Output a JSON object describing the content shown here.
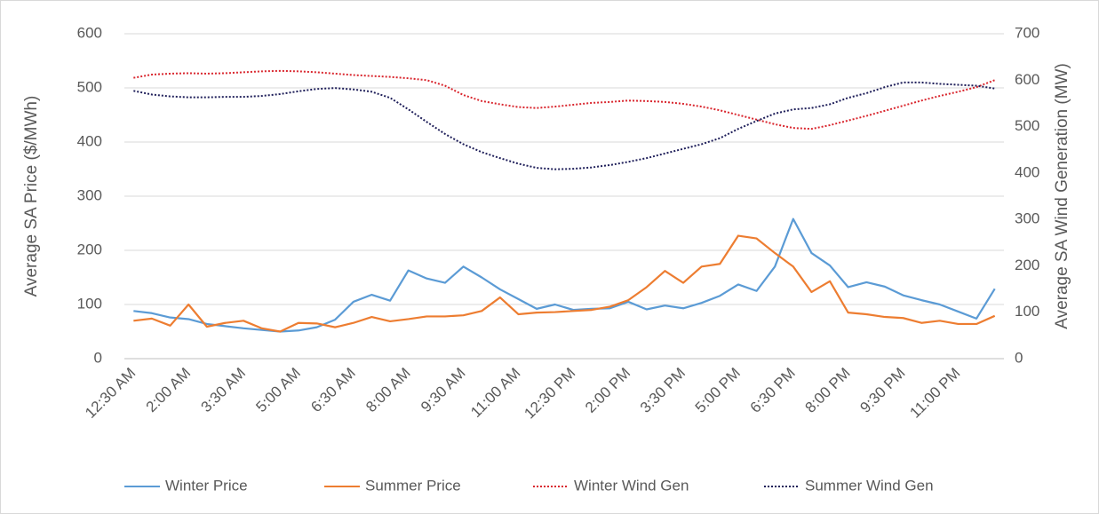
{
  "chart_data": {
    "type": "line",
    "y_label": "Average SA Price ($/MWh)",
    "y2_label": "Average SA Wind Generation (MW)",
    "categories": [
      "12:30 AM",
      null,
      null,
      "2:00 AM",
      null,
      null,
      "3:30 AM",
      null,
      null,
      "5:00 AM",
      null,
      null,
      "6:30 AM",
      null,
      null,
      "8:00 AM",
      null,
      null,
      "9:30 AM",
      null,
      null,
      "11:00 AM",
      null,
      null,
      "12:30 PM",
      null,
      null,
      "2:00 PM",
      null,
      null,
      "3:30 PM",
      null,
      null,
      "5:00 PM",
      null,
      null,
      "6:30 PM",
      null,
      null,
      "8:00 PM",
      null,
      null,
      "9:30 PM",
      null,
      null,
      "11:00 PM",
      null,
      null
    ],
    "ylim": [
      0,
      600
    ],
    "yticks": [
      0,
      100,
      200,
      300,
      400,
      500,
      600
    ],
    "y2lim": [
      0,
      700
    ],
    "y2ticks": [
      0,
      100,
      200,
      300,
      400,
      500,
      600,
      700
    ],
    "grid": true,
    "legend": "bottom",
    "series": [
      {
        "name": "Winter Price",
        "color": "#5b9bd5",
        "style": "solid",
        "values": [
          88,
          84,
          76,
          73,
          64,
          60,
          56,
          53,
          50,
          52,
          58,
          72,
          105,
          118,
          107,
          163,
          148,
          140,
          170,
          150,
          128,
          110,
          92,
          100,
          90,
          92,
          93,
          105,
          91,
          98,
          93,
          103,
          116,
          137,
          125,
          170,
          258,
          195,
          172,
          132,
          141,
          133,
          117,
          108,
          100,
          87,
          74,
          129
        ]
      },
      {
        "name": "Summer Price",
        "color": "#ed7d31",
        "style": "solid",
        "values": [
          70,
          74,
          61,
          100,
          59,
          66,
          70,
          56,
          50,
          66,
          65,
          58,
          66,
          77,
          69,
          73,
          78,
          78,
          80,
          88,
          113,
          82,
          85,
          86,
          88,
          90,
          96,
          108,
          132,
          162,
          140,
          170,
          175,
          227,
          222,
          195,
          170,
          123,
          143,
          85,
          82,
          77,
          75,
          66,
          70,
          64,
          64,
          79
        ]
      },
      {
        "name": "Winter Wind Gen",
        "color": "#d9262e",
        "style": "dotted",
        "axis": "y2",
        "values": [
          605,
          612,
          614,
          615,
          614,
          615,
          617,
          619,
          620,
          619,
          617,
          614,
          611,
          609,
          607,
          604,
          600,
          588,
          568,
          555,
          548,
          542,
          540,
          543,
          547,
          551,
          553,
          556,
          555,
          553,
          549,
          543,
          535,
          525,
          515,
          505,
          497,
          495,
          503,
          513,
          523,
          534,
          545,
          556,
          566,
          575,
          585,
          600
        ]
      },
      {
        "name": "Summer Wind Gen",
        "color": "#1f1f5a",
        "style": "dotted",
        "axis": "y2",
        "values": [
          577,
          569,
          565,
          563,
          563,
          564,
          564,
          566,
          570,
          576,
          581,
          583,
          580,
          575,
          562,
          537,
          510,
          484,
          462,
          445,
          432,
          420,
          411,
          408,
          409,
          412,
          417,
          424,
          432,
          442,
          452,
          462,
          475,
          495,
          512,
          528,
          537,
          540,
          548,
          562,
          572,
          585,
          595,
          595,
          592,
          590,
          588,
          582
        ]
      }
    ]
  }
}
